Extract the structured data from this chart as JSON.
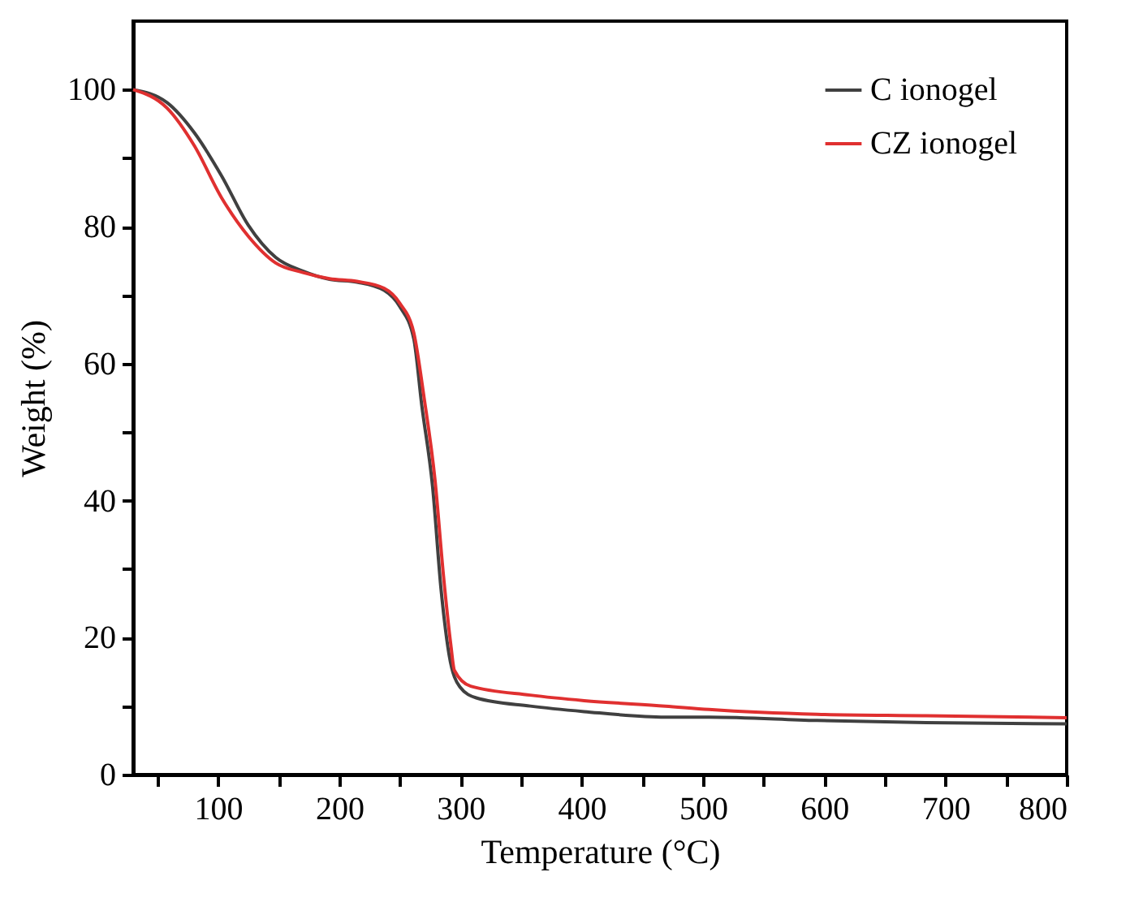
{
  "chart_data": {
    "type": "line",
    "xlabel": "Temperature (°C)",
    "ylabel": "Weight (%)",
    "xlim": [
      30,
      800
    ],
    "ylim": [
      0,
      110
    ],
    "xticks": [
      {
        "value": 50,
        "label": null
      },
      100,
      {
        "value": 150,
        "label": null
      },
      200,
      {
        "value": 250,
        "label": null
      },
      300,
      {
        "value": 350,
        "label": null
      },
      400,
      {
        "value": 450,
        "label": null
      },
      500,
      {
        "value": 550,
        "label": null
      },
      600,
      {
        "value": 650,
        "label": null
      },
      700,
      {
        "value": 750,
        "label": null
      },
      800
    ],
    "yticks": [
      0,
      {
        "value": 10,
        "label": null
      },
      20,
      {
        "value": 30,
        "label": null
      },
      40,
      {
        "value": 50,
        "label": null
      },
      60,
      {
        "value": 70,
        "label": null
      },
      80,
      {
        "value": 90,
        "label": null
      },
      100
    ],
    "grid": false,
    "legend": "top right",
    "line_style": "solid",
    "marker": "none",
    "series": [
      {
        "name": "C ionogel",
        "color": "#404040",
        "x": [
          30,
          58,
          80.5,
          103,
          125,
          147.6,
          170,
          192,
          214.6,
          237,
          250,
          261.5,
          268,
          277,
          284,
          290.6,
          299.5,
          313,
          357.6,
          402,
          469,
          505,
          594,
          684,
          800
        ],
        "values": [
          100,
          98.1,
          93.7,
          87.4,
          80.2,
          75.5,
          73.5,
          72.3,
          71.9,
          70.7,
          68.3,
          63.6,
          54,
          42,
          27,
          17.5,
          12.8,
          11.2,
          10,
          9.2,
          8.4,
          8.4,
          7.9,
          7.6,
          7.4
        ]
      },
      {
        "name": "CZ ionogel",
        "color": "#e03030",
        "x": [
          30,
          58,
          80.5,
          103,
          125,
          147.6,
          170,
          192,
          214.6,
          237,
          250,
          261.5,
          270,
          279,
          286,
          292,
          295,
          308.4,
          357.6,
          402,
          469,
          505,
          594,
          684,
          800
        ],
        "values": [
          100,
          97.3,
          91.8,
          84.2,
          78.6,
          74.7,
          73.3,
          72.4,
          72,
          71,
          68.8,
          64.5,
          55,
          43,
          29,
          19,
          15.2,
          12.9,
          11.6,
          10.8,
          10,
          9.5,
          8.8,
          8.6,
          8.3
        ]
      }
    ]
  }
}
